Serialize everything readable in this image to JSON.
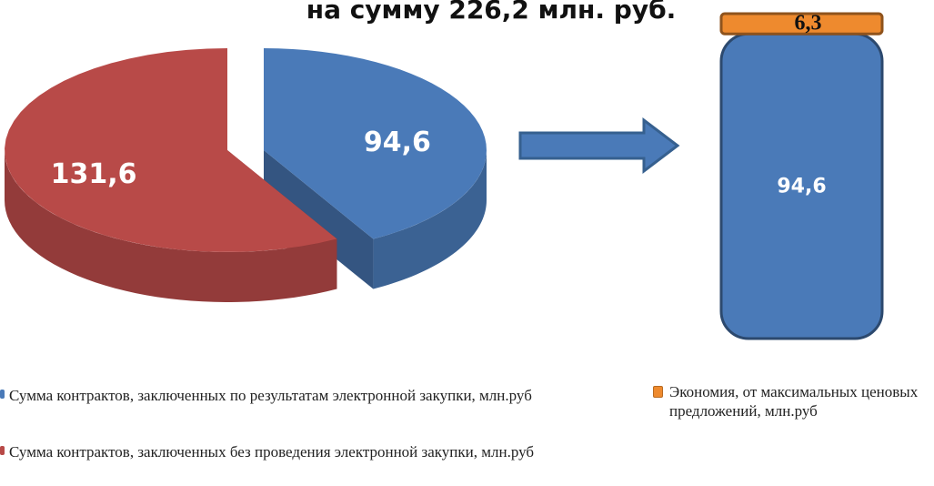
{
  "chart_data": [
    {
      "type": "pie",
      "title": "на сумму 226,2 млн. руб.",
      "categories": [
        "Сумма контрактов, заключенных по результатам электронной закупки, млн.руб",
        "Сумма контрактов, заключенных без проведения электронной закупки, млн.руб"
      ],
      "values": [
        94.6,
        131.6
      ],
      "value_labels": [
        "94,6",
        "131,6"
      ],
      "colors": [
        "#4a7ab8",
        "#b84a48"
      ]
    },
    {
      "type": "bar",
      "series": [
        {
          "color": "#4a7ab8",
          "values": [
            94.6
          ],
          "value_labels": [
            "94,6"
          ]
        },
        {
          "name": "Экономия, от максимальных ценовых предложений, млн.руб",
          "color": "#ee8a2e",
          "values": [
            6.3
          ],
          "value_labels": [
            "6,3"
          ]
        }
      ]
    }
  ]
}
